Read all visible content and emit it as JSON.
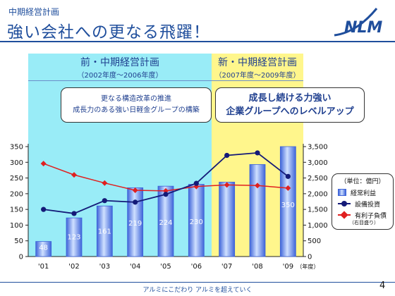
{
  "header": {
    "supertitle": "中期経営計画",
    "title": "強い会社への更なる飛躍！",
    "logo_text": "NLM"
  },
  "periods": {
    "old": {
      "title": "前・中期経営計画",
      "subtitle": "（2002年度～2006年度）",
      "callout": [
        "更なる構造改革の推進",
        "成長力のある強い日軽金グループの構築"
      ],
      "color": "#99ecf7"
    },
    "new": {
      "title": "新・中期経営計画",
      "subtitle": "（2007年度～2009年度）",
      "callout": [
        "成長し続ける力強い",
        "企業グループへのレベルアップ"
      ],
      "color": "#fff68c"
    }
  },
  "legend": {
    "unit": "（単位：億円）",
    "note": "（右目盛り）"
  },
  "chart_data": {
    "type": "bar",
    "categories": [
      "'01",
      "'02",
      "'03",
      "'04",
      "'05",
      "'06",
      "'07",
      "'08",
      "'09"
    ],
    "x_unit_label": "（年度）",
    "y_left": {
      "ticks": [
        0,
        50,
        100,
        150,
        200,
        250,
        300,
        350
      ],
      "range": [
        0,
        350
      ]
    },
    "y_right": {
      "ticks": [
        "0",
        "500",
        "1,000",
        "1,500",
        "2,000",
        "2,500",
        "3,000",
        "3,500"
      ],
      "range": [
        0,
        3500
      ]
    },
    "series": [
      {
        "name": "経常利益",
        "type": "bar",
        "axis": "left",
        "values": [
          48,
          123,
          161,
          219,
          224,
          230,
          237,
          293,
          350
        ],
        "labels": [
          "48",
          "123",
          "161",
          "219",
          "224",
          "230",
          "",
          "",
          "350"
        ],
        "color": "#3e64d9"
      },
      {
        "name": "設備投資",
        "type": "line",
        "axis": "left",
        "marker": "circle",
        "values": [
          150,
          137,
          178,
          173,
          198,
          233,
          322,
          330,
          255
        ],
        "color": "#141a78"
      },
      {
        "name": "有利子負債",
        "type": "line",
        "axis": "right",
        "marker": "diamond",
        "values": [
          2960,
          2600,
          2340,
          2110,
          2090,
          2230,
          2280,
          2260,
          2180
        ],
        "color": "#e02020"
      }
    ]
  },
  "footer": {
    "slogan": "アルミにこだわり アルミを超えていく",
    "page": "4"
  }
}
